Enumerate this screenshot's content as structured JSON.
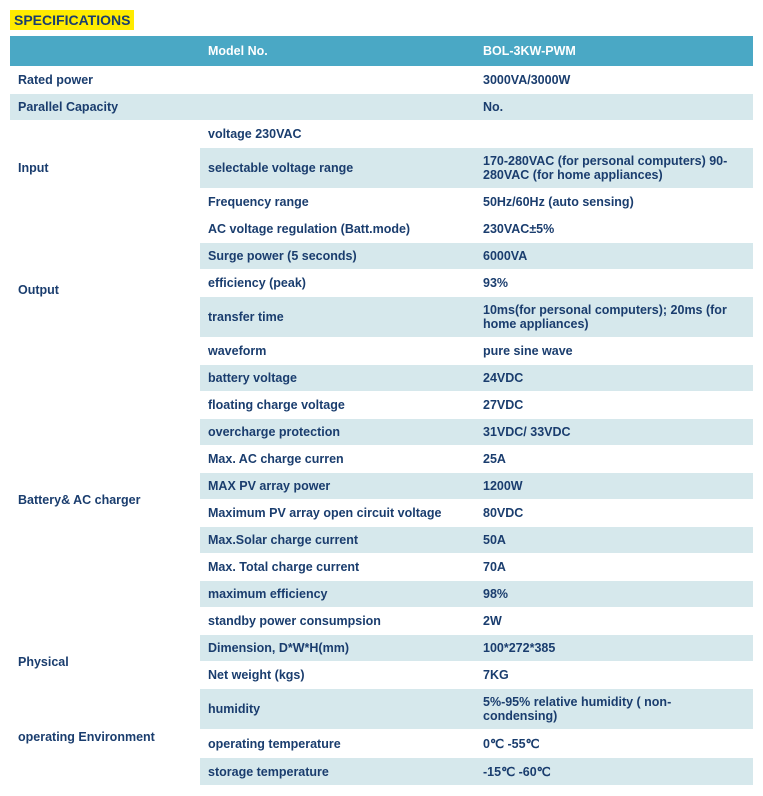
{
  "title": "SPECIFICATIONS",
  "header": {
    "c1": "",
    "c2": "Model No.",
    "c3": "BOL-3KW-PWM"
  },
  "rows": [
    {
      "group": "Rated power",
      "param": "",
      "val": "3000VA/3000W",
      "span": 1,
      "shade": "white"
    },
    {
      "group": "Parallel Capacity",
      "param": "",
      "val": "No.",
      "span": 1,
      "shade": "grey"
    },
    {
      "group": "Input",
      "param": "voltage 230VAC",
      "val": "",
      "span": 3,
      "shade": "white"
    },
    {
      "param": "selectable voltage range",
      "val": "170-280VAC (for personal computers) 90-280VAC (for home appliances)",
      "shade": "grey"
    },
    {
      "param": "Frequency range",
      "val": "50Hz/60Hz (auto sensing)",
      "shade": "white"
    },
    {
      "group": "Output",
      "param": "AC voltage regulation (Batt.mode)",
      "val": "230VAC±5%",
      "span": 5,
      "shade": "white"
    },
    {
      "param": "Surge power (5 seconds)",
      "val": "6000VA",
      "shade": "grey"
    },
    {
      "param": "efficiency (peak)",
      "val": "93%",
      "shade": "white"
    },
    {
      "param": "transfer time",
      "val": "10ms(for personal computers); 20ms (for home appliances)",
      "shade": "grey"
    },
    {
      "param": "waveform",
      "val": "pure sine wave",
      "shade": "white"
    },
    {
      "group": "Battery& AC charger",
      "param": "battery voltage",
      "val": "24VDC",
      "span": 10,
      "shade": "grey"
    },
    {
      "param": "floating charge voltage",
      "val": "27VDC",
      "shade": "white"
    },
    {
      "param": "overcharge protection",
      "val": "31VDC/ 33VDC",
      "shade": "grey"
    },
    {
      "param": "Max. AC charge curren",
      "val": "25A",
      "shade": "white"
    },
    {
      "param": "MAX PV array power",
      "val": "1200W",
      "shade": "grey"
    },
    {
      "param": "Maximum PV array open circuit voltage",
      "val": "80VDC",
      "shade": "white"
    },
    {
      "param": "Max.Solar charge current",
      "val": "50A",
      "shade": "grey"
    },
    {
      "param": "Max. Total charge current",
      "val": "70A",
      "shade": "white"
    },
    {
      "param": "maximum efficiency",
      "val": "98%",
      "shade": "grey"
    },
    {
      "param": "standby power consumpsion",
      "val": "2W",
      "shade": "white"
    },
    {
      "group": "Physical",
      "param": "Dimension, D*W*H(mm)",
      "val": "100*272*385",
      "span": 2,
      "shade": "grey"
    },
    {
      "param": "Net weight (kgs)",
      "val": "7KG",
      "shade": "white"
    },
    {
      "group": "operating Environment",
      "param": "humidity",
      "val": "5%-95% relative humidity ( non-condensing)",
      "span": 3,
      "shade": "grey"
    },
    {
      "param": "operating temperature",
      "val": "0℃ -55℃",
      "shade": "white"
    },
    {
      "param": "storage temperature",
      "val": "-15℃ -60℃",
      "shade": "grey"
    }
  ],
  "colors": {
    "title_bg": "#ffeb00",
    "title_fg": "#1a3d6e",
    "header_bg": "#4aa8c5",
    "header_fg": "#ffffff",
    "row_white": "#ffffff",
    "row_grey": "#d6e8ec",
    "text": "#1a3d6e"
  }
}
